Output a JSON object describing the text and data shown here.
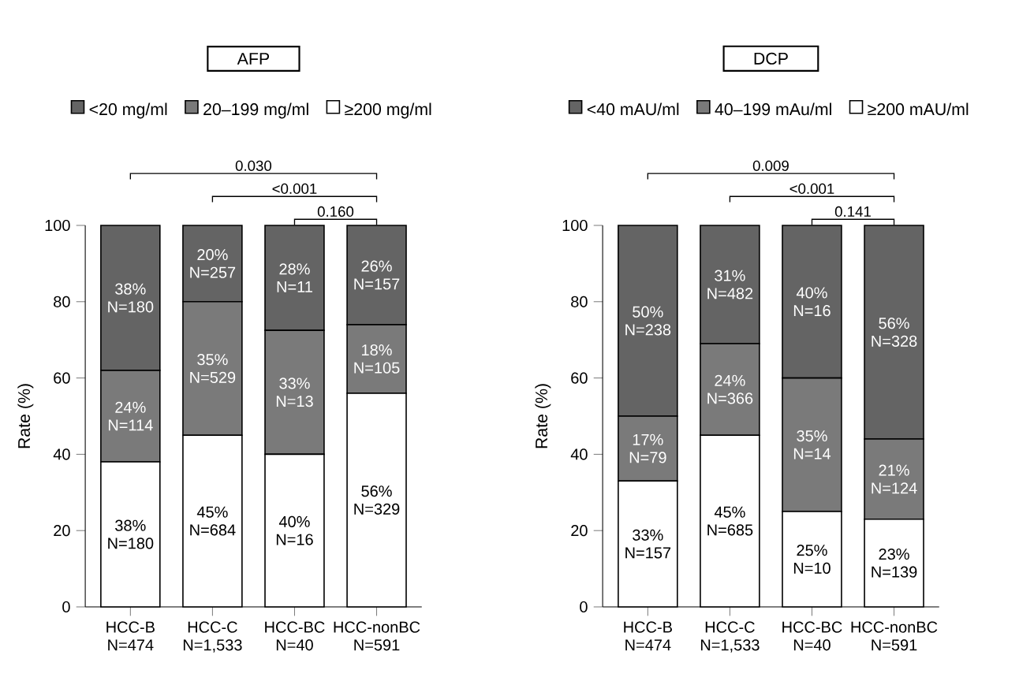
{
  "chart_data": [
    {
      "type": "bar",
      "stacked": true,
      "title": "AFP",
      "ylabel": "Rate (%)",
      "categories": [
        "HCC-B N=474",
        "HCC-C N=1,533",
        "HCC-BC N=40",
        "HCC-nonBC N=591"
      ],
      "series": [
        {
          "name": "≥200 mg/ml",
          "color": "#ffffff",
          "values": [
            38,
            45,
            40,
            56
          ],
          "value_labels": [
            "38% N=180",
            "45% N=684",
            "40% N=16",
            "56% N=329"
          ]
        },
        {
          "name": "20–199 mg/ml",
          "color": "#7a7a7a",
          "values": [
            24,
            35,
            32.5,
            18
          ],
          "value_labels": [
            "24% N=114",
            "35% N=529",
            "33% N=13",
            "18% N=105"
          ]
        },
        {
          "name": "<20 mg/ml",
          "color": "#646464",
          "values": [
            38,
            20,
            27.5,
            26
          ],
          "value_labels": [
            "38% N=180",
            "20% N=257",
            "28% N=11",
            "26% N=157"
          ]
        }
      ],
      "ylim": [
        0,
        100
      ],
      "yticks": [
        0,
        20,
        40,
        60,
        80,
        100
      ],
      "legend": "top",
      "annotations": [
        "0.030",
        "<0.001",
        "0.160"
      ]
    },
    {
      "type": "bar",
      "stacked": true,
      "title": "DCP",
      "ylabel": "Rate (%)",
      "categories": [
        "HCC-B N=474",
        "HCC-C N=1,533",
        "HCC-BC N=40",
        "HCC-nonBC N=591"
      ],
      "series": [
        {
          "name": "≥200 mAU/ml",
          "color": "#ffffff",
          "values": [
            33,
            45,
            25,
            23
          ],
          "value_labels": [
            "33% N=157",
            "45% N=685",
            "25% N=10",
            "23% N=139"
          ]
        },
        {
          "name": "40–199 mAu/ml",
          "color": "#7a7a7a",
          "values": [
            17,
            24,
            35,
            21
          ],
          "value_labels": [
            "17% N=79",
            "24% N=366",
            "35% N=14",
            "21% N=124"
          ]
        },
        {
          "name": "<40 mAU/ml",
          "color": "#646464",
          "values": [
            50,
            31,
            40,
            56
          ],
          "value_labels": [
            "50% N=238",
            "31% N=482",
            "40% N=16",
            "56% N=328"
          ]
        }
      ],
      "ylim": [
        0,
        100
      ],
      "yticks": [
        0,
        20,
        40,
        60,
        80,
        100
      ],
      "legend": "top",
      "annotations": [
        "0.009",
        "<0.001",
        "0.141"
      ]
    }
  ]
}
